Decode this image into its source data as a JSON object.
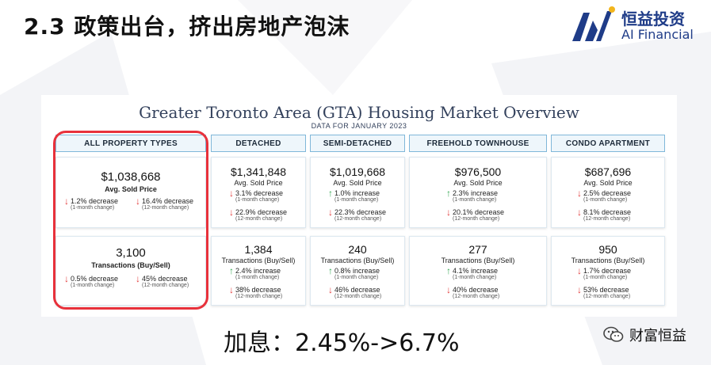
{
  "slide_title": "2.3 政策出台，挤出房地产泡沫",
  "logo": {
    "name_cn": "恒益投资",
    "name_en": "AI Financial",
    "icon": "ai-financial-logo-icon"
  },
  "report": {
    "title": "Greater Toronto Area (GTA) Housing Market Overview",
    "subtitle": "DATA FOR JANUARY 2023",
    "columns": [
      {
        "header": "ALL PROPERTY TYPES",
        "price": {
          "value": "$1,038,668",
          "label": "Avg. Sold Price",
          "changes": [
            {
              "direction": "down",
              "text": "1.2% decrease",
              "note": "(1-month change)"
            },
            {
              "direction": "down",
              "text": "16.4% decrease",
              "note": "(12-month change)"
            }
          ]
        },
        "transactions": {
          "value": "3,100",
          "label": "Transactions (Buy/Sell)",
          "changes": [
            {
              "direction": "down",
              "text": "0.5% decrease",
              "note": "(1-month change)"
            },
            {
              "direction": "down",
              "text": "45% decrease",
              "note": "(12-month change)"
            }
          ]
        }
      },
      {
        "header": "DETACHED",
        "price": {
          "value": "$1,341,848",
          "label": "Avg. Sold Price",
          "changes": [
            {
              "direction": "down",
              "text": "3.1% decrease",
              "note": "(1-month change)"
            },
            {
              "direction": "down",
              "text": "22.9% decrease",
              "note": "(12-month change)"
            }
          ]
        },
        "transactions": {
          "value": "1,384",
          "label": "Transactions (Buy/Sell)",
          "changes": [
            {
              "direction": "up",
              "text": "2.4% increase",
              "note": "(1-month change)"
            },
            {
              "direction": "down",
              "text": "38% decrease",
              "note": "(12-month change)"
            }
          ]
        }
      },
      {
        "header": "SEMI-DETACHED",
        "price": {
          "value": "$1,019,668",
          "label": "Avg. Sold Price",
          "changes": [
            {
              "direction": "up",
              "text": "1.0% increase",
              "note": "(1-month change)"
            },
            {
              "direction": "down",
              "text": "22.3% decrease",
              "note": "(12-month change)"
            }
          ]
        },
        "transactions": {
          "value": "240",
          "label": "Transactions (Buy/Sell)",
          "changes": [
            {
              "direction": "up",
              "text": "0.8% increase",
              "note": "(1-month change)"
            },
            {
              "direction": "down",
              "text": "46% decrease",
              "note": "(12-month change)"
            }
          ]
        }
      },
      {
        "header": "FREEHOLD TOWNHOUSE",
        "price": {
          "value": "$976,500",
          "label": "Avg. Sold Price",
          "changes": [
            {
              "direction": "up",
              "text": "2.3% increase",
              "note": "(1-month change)"
            },
            {
              "direction": "down",
              "text": "20.1% decrease",
              "note": "(12-month change)"
            }
          ]
        },
        "transactions": {
          "value": "277",
          "label": "Transactions (Buy/Sell)",
          "changes": [
            {
              "direction": "up",
              "text": "4.1% increase",
              "note": "(1-month change)"
            },
            {
              "direction": "down",
              "text": "40% decrease",
              "note": "(12-month change)"
            }
          ]
        }
      },
      {
        "header": "CONDO APARTMENT",
        "price": {
          "value": "$687,696",
          "label": "Avg. Sold Price",
          "changes": [
            {
              "direction": "down",
              "text": "2.5% decrease",
              "note": "(1-month change)"
            },
            {
              "direction": "down",
              "text": "8.1% decrease",
              "note": "(12-month change)"
            }
          ]
        },
        "transactions": {
          "value": "950",
          "label": "Transactions (Buy/Sell)",
          "changes": [
            {
              "direction": "down",
              "text": "1.7% decrease",
              "note": "(1-month change)"
            },
            {
              "direction": "down",
              "text": "53% decrease",
              "note": "(12-month change)"
            }
          ]
        }
      }
    ]
  },
  "rate_text": "加息：2.45%->6.7%",
  "watermark": {
    "text": "财富恒益",
    "icon": "wechat-icon"
  },
  "colors": {
    "highlight": "#e8313b",
    "down": "#e23a3a",
    "up": "#35a853",
    "header_border": "#7fb7d9",
    "logo": "#1f3c88"
  }
}
